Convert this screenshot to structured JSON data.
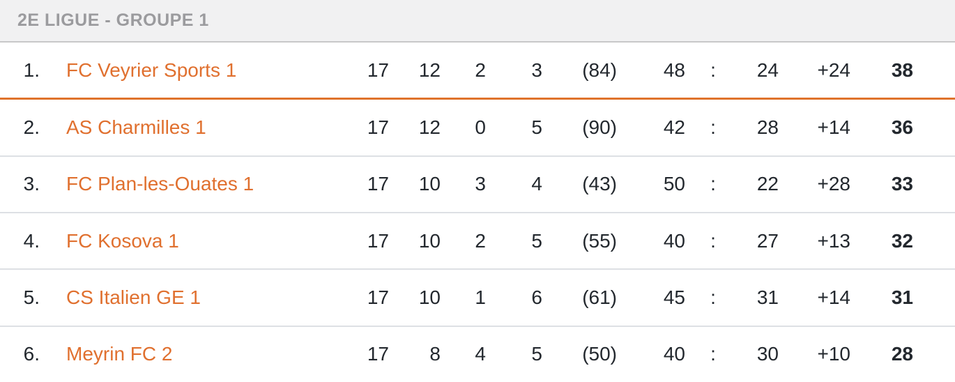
{
  "header": {
    "title": "2E LIGUE - GROUPE 1"
  },
  "table": {
    "score_separator": ":",
    "rows": [
      {
        "pos": "1.",
        "team": "FC Veyrier Sports 1",
        "played": "17",
        "won": "12",
        "drawn": "2",
        "lost": "3",
        "bracket": "(84)",
        "goals_for": "48",
        "goals_against": "24",
        "diff": "+24",
        "points": "38",
        "promotion": true
      },
      {
        "pos": "2.",
        "team": "AS Charmilles 1",
        "played": "17",
        "won": "12",
        "drawn": "0",
        "lost": "5",
        "bracket": "(90)",
        "goals_for": "42",
        "goals_against": "28",
        "diff": "+14",
        "points": "36",
        "promotion": false
      },
      {
        "pos": "3.",
        "team": "FC Plan-les-Ouates 1",
        "played": "17",
        "won": "10",
        "drawn": "3",
        "lost": "4",
        "bracket": "(43)",
        "goals_for": "50",
        "goals_against": "22",
        "diff": "+28",
        "points": "33",
        "promotion": false
      },
      {
        "pos": "4.",
        "team": "FC Kosova 1",
        "played": "17",
        "won": "10",
        "drawn": "2",
        "lost": "5",
        "bracket": "(55)",
        "goals_for": "40",
        "goals_against": "27",
        "diff": "+13",
        "points": "32",
        "promotion": false
      },
      {
        "pos": "5.",
        "team": "CS Italien GE 1",
        "played": "17",
        "won": "10",
        "drawn": "1",
        "lost": "6",
        "bracket": "(61)",
        "goals_for": "45",
        "goals_against": "31",
        "diff": "+14",
        "points": "31",
        "promotion": false
      },
      {
        "pos": "6.",
        "team": "Meyrin FC 2",
        "played": "17",
        "won": "8",
        "drawn": "4",
        "lost": "5",
        "bracket": "(50)",
        "goals_for": "40",
        "goals_against": "30",
        "diff": "+10",
        "points": "28",
        "promotion": false
      }
    ]
  },
  "colors": {
    "accent": "#E0702F",
    "promotion_line": "#DF732C",
    "text_dark": "#23282E",
    "header_bg": "#F1F1F2",
    "header_text": "#9B9B9E",
    "header_border": "#C8C8C9",
    "row_divider": "#DDE0E4"
  }
}
